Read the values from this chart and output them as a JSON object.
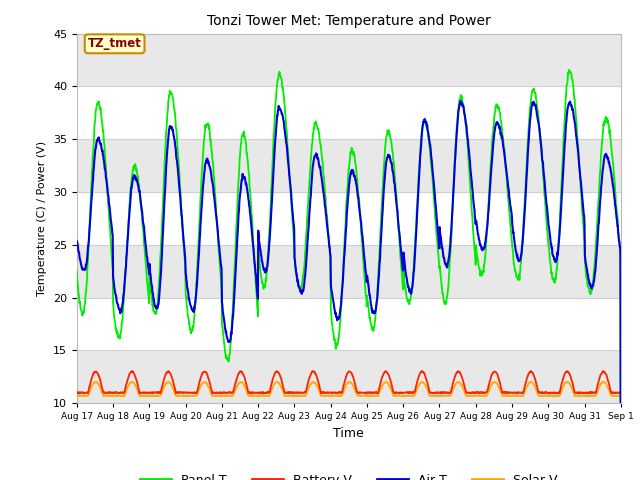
{
  "title": "Tonzi Tower Met: Temperature and Power",
  "xlabel": "Time",
  "ylabel": "Temperature (C) / Power (V)",
  "ylim": [
    10,
    45
  ],
  "fig_bg_color": "#ffffff",
  "plot_bg_color": "#ffffff",
  "band_color": "#e8e8e8",
  "grid_color": "#d0d0d0",
  "label_box_text": "TZ_tmet",
  "label_box_facecolor": "#ffffcc",
  "label_box_edgecolor": "#cc8800",
  "label_box_textcolor": "#880000",
  "colors": {
    "panel_t": "#00ee00",
    "air_t": "#0000dd",
    "battery_v": "#ff2200",
    "solar_v": "#ffaa00"
  },
  "legend_labels": [
    "Panel T",
    "Battery V",
    "Air T",
    "Solar V"
  ],
  "start_day": 17,
  "n_days": 15,
  "points_per_day": 96,
  "panel_t_day_peaks": [
    38.5,
    32.5,
    39.5,
    36.5,
    35.5,
    41.2,
    36.5,
    34.0,
    35.8,
    36.7,
    39.0,
    38.2,
    39.7,
    41.5,
    37.0
  ],
  "panel_t_night_mins": [
    18.5,
    16.2,
    18.5,
    16.8,
    14.0,
    21.0,
    20.8,
    15.5,
    17.0,
    19.5,
    19.5,
    22.2,
    21.8,
    21.5,
    20.5
  ],
  "air_t_day_peaks": [
    35.0,
    31.5,
    36.2,
    33.0,
    31.5,
    38.0,
    33.5,
    32.0,
    33.5,
    36.8,
    38.5,
    36.5,
    38.5,
    38.5,
    33.5
  ],
  "air_t_night_mins": [
    22.5,
    18.8,
    19.0,
    18.8,
    15.8,
    22.5,
    20.5,
    18.0,
    18.5,
    20.5,
    23.0,
    24.5,
    23.5,
    23.5,
    21.0
  ],
  "battery_v_base": 11.0,
  "battery_v_peak": 13.0,
  "solar_v_base": 10.7,
  "solar_v_peak": 12.0,
  "yticks": [
    10,
    15,
    20,
    25,
    30,
    35,
    40,
    45
  ]
}
